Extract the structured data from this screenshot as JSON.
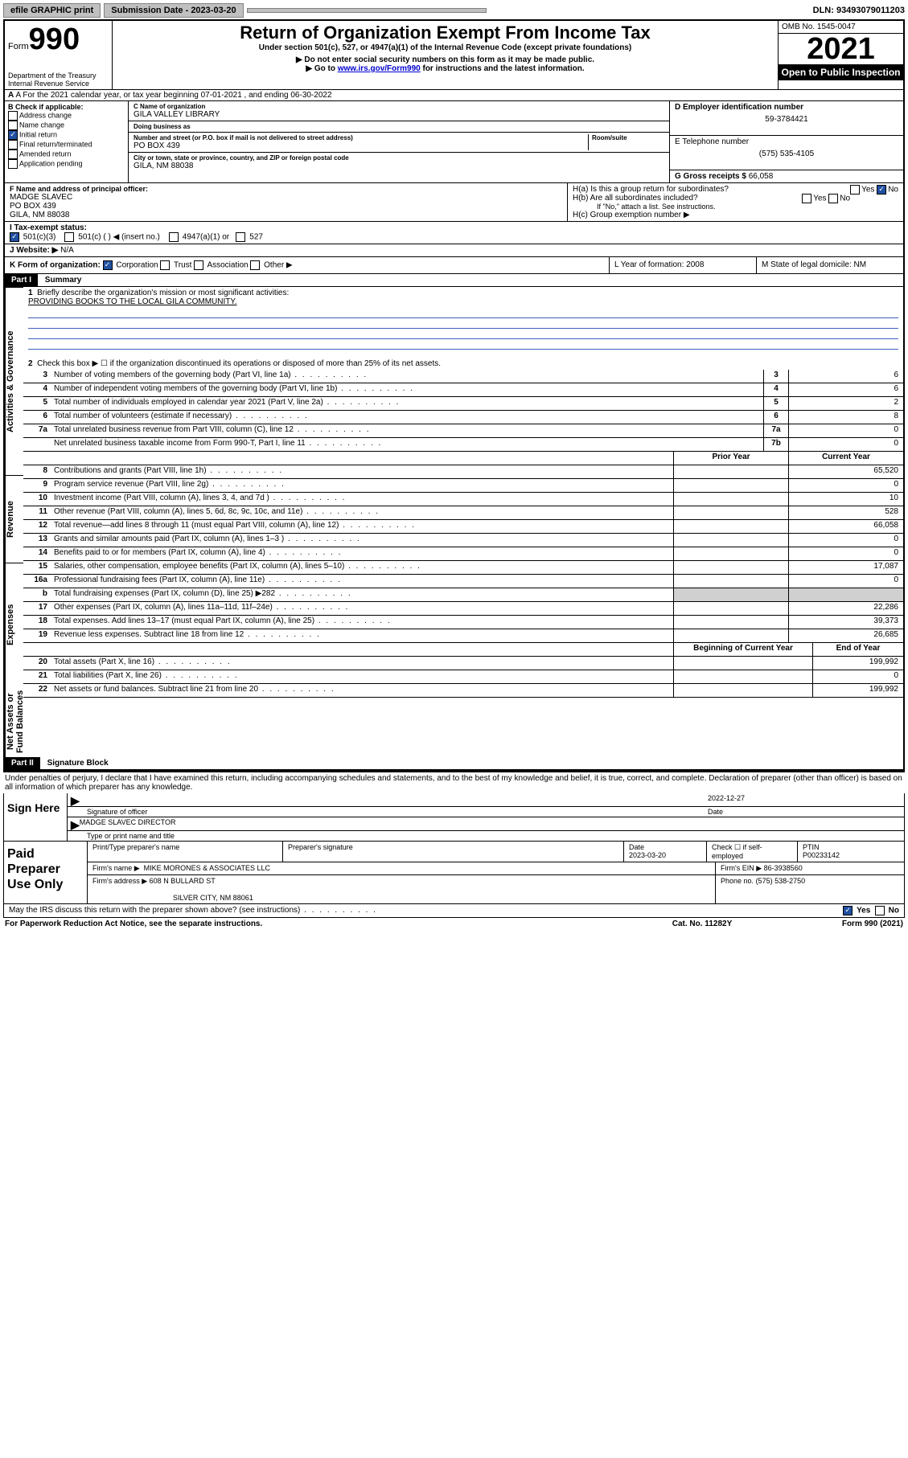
{
  "topbar": {
    "efile": "efile GRAPHIC print",
    "subdate_label": "Submission Date - 2023-03-20",
    "dln": "DLN: 93493079011203"
  },
  "header": {
    "form_word": "Form",
    "form_num": "990",
    "dept": "Department of the Treasury",
    "irs": "Internal Revenue Service",
    "title": "Return of Organization Exempt From Income Tax",
    "sub1": "Under section 501(c), 527, or 4947(a)(1) of the Internal Revenue Code (except private foundations)",
    "sub2": "▶ Do not enter social security numbers on this form as it may be made public.",
    "sub3_pre": "▶ Go to ",
    "sub3_link": "www.irs.gov/Form990",
    "sub3_post": " for instructions and the latest information.",
    "omb": "OMB No. 1545-0047",
    "year": "2021",
    "open": "Open to Public Inspection"
  },
  "rowA": "A For the 2021 calendar year, or tax year beginning 07-01-2021  , and ending 06-30-2022",
  "B": {
    "label": "B Check if applicable:",
    "opts": [
      "Address change",
      "Name change",
      "Initial return",
      "Final return/terminated",
      "Amended return",
      "Application pending"
    ],
    "checked_idx": 2
  },
  "C": {
    "name_label": "C Name of organization",
    "name": "GILA VALLEY LIBRARY",
    "dba_label": "Doing business as",
    "dba": "",
    "addr_label": "Number and street (or P.O. box if mail is not delivered to street address)",
    "room_label": "Room/suite",
    "addr": "PO BOX 439",
    "city_label": "City or town, state or province, country, and ZIP or foreign postal code",
    "city": "GILA, NM  88038"
  },
  "D": {
    "label": "D Employer identification number",
    "value": "59-3784421"
  },
  "E": {
    "label": "E Telephone number",
    "value": "(575) 535-4105"
  },
  "G": {
    "label": "G Gross receipts $",
    "value": "66,058"
  },
  "F": {
    "label": "F  Name and address of principal officer:",
    "line1": "MADGE SLAVEC",
    "line2": "PO BOX 439",
    "line3": "GILA, NM  88038"
  },
  "H": {
    "a": "H(a)  Is this a group return for subordinates?",
    "a_yes": "Yes",
    "a_no": "No",
    "b": "H(b)  Are all subordinates included?",
    "b_yes": "Yes",
    "b_no": "No",
    "b_note": "If \"No,\" attach a list. See instructions.",
    "c": "H(c)  Group exemption number ▶"
  },
  "I": {
    "label": "I     Tax-exempt status:",
    "o1": "501(c)(3)",
    "o2": "501(c) (  ) ◀ (insert no.)",
    "o3": "4947(a)(1) or",
    "o4": "527"
  },
  "J": {
    "label": "J   Website: ▶",
    "value": "N/A"
  },
  "K": {
    "label": "K Form of organization:",
    "o1": "Corporation",
    "o2": "Trust",
    "o3": "Association",
    "o4": "Other ▶"
  },
  "L": {
    "label": "L Year of formation: 2008"
  },
  "M": {
    "label": "M State of legal domicile: NM"
  },
  "partI": {
    "header": "Part I",
    "title": "Summary",
    "q1": "Briefly describe the organization's mission or most significant activities:",
    "mission": "PROVIDING BOOKS TO THE LOCAL GILA COMMUNITY.",
    "q2": "Check this box ▶ ☐  if the organization discontinued its operations or disposed of more than 25% of its net assets.",
    "side1": "Activities & Governance",
    "side2": "Revenue",
    "side3": "Expenses",
    "side4": "Net Assets or Fund Balances",
    "hdr_prior": "Prior Year",
    "hdr_current": "Current Year",
    "hdr_beg": "Beginning of Current Year",
    "hdr_end": "End of Year",
    "rows_gov": [
      {
        "n": "3",
        "d": "Number of voting members of the governing body (Part VI, line 1a)",
        "box": "3",
        "v": "6"
      },
      {
        "n": "4",
        "d": "Number of independent voting members of the governing body (Part VI, line 1b)",
        "box": "4",
        "v": "6"
      },
      {
        "n": "5",
        "d": "Total number of individuals employed in calendar year 2021 (Part V, line 2a)",
        "box": "5",
        "v": "2"
      },
      {
        "n": "6",
        "d": "Total number of volunteers (estimate if necessary)",
        "box": "6",
        "v": "8"
      },
      {
        "n": "7a",
        "d": "Total unrelated business revenue from Part VIII, column (C), line 12",
        "box": "7a",
        "v": "0"
      },
      {
        "n": "",
        "d": "Net unrelated business taxable income from Form 990-T, Part I, line 11",
        "box": "7b",
        "v": "0"
      }
    ],
    "rows_rev": [
      {
        "n": "8",
        "d": "Contributions and grants (Part VIII, line 1h)",
        "p": "",
        "c": "65,520"
      },
      {
        "n": "9",
        "d": "Program service revenue (Part VIII, line 2g)",
        "p": "",
        "c": "0"
      },
      {
        "n": "10",
        "d": "Investment income (Part VIII, column (A), lines 3, 4, and 7d )",
        "p": "",
        "c": "10"
      },
      {
        "n": "11",
        "d": "Other revenue (Part VIII, column (A), lines 5, 6d, 8c, 9c, 10c, and 11e)",
        "p": "",
        "c": "528"
      },
      {
        "n": "12",
        "d": "Total revenue—add lines 8 through 11 (must equal Part VIII, column (A), line 12)",
        "p": "",
        "c": "66,058"
      }
    ],
    "rows_exp": [
      {
        "n": "13",
        "d": "Grants and similar amounts paid (Part IX, column (A), lines 1–3 )",
        "p": "",
        "c": "0"
      },
      {
        "n": "14",
        "d": "Benefits paid to or for members (Part IX, column (A), line 4)",
        "p": "",
        "c": "0"
      },
      {
        "n": "15",
        "d": "Salaries, other compensation, employee benefits (Part IX, column (A), lines 5–10)",
        "p": "",
        "c": "17,087"
      },
      {
        "n": "16a",
        "d": "Professional fundraising fees (Part IX, column (A), line 11e)",
        "p": "",
        "c": "0"
      },
      {
        "n": "b",
        "d": "Total fundraising expenses (Part IX, column (D), line 25) ▶282",
        "p": "shade",
        "c": "shade"
      },
      {
        "n": "17",
        "d": "Other expenses (Part IX, column (A), lines 11a–11d, 11f–24e)",
        "p": "",
        "c": "22,286"
      },
      {
        "n": "18",
        "d": "Total expenses. Add lines 13–17 (must equal Part IX, column (A), line 25)",
        "p": "",
        "c": "39,373"
      },
      {
        "n": "19",
        "d": "Revenue less expenses. Subtract line 18 from line 12",
        "p": "",
        "c": "26,685"
      }
    ],
    "rows_net": [
      {
        "n": "20",
        "d": "Total assets (Part X, line 16)",
        "p": "",
        "c": "199,992"
      },
      {
        "n": "21",
        "d": "Total liabilities (Part X, line 26)",
        "p": "",
        "c": "0"
      },
      {
        "n": "22",
        "d": "Net assets or fund balances. Subtract line 21 from line 20",
        "p": "",
        "c": "199,992"
      }
    ]
  },
  "partII": {
    "header": "Part II",
    "title": "Signature Block",
    "penalties": "Under penalties of perjury, I declare that I have examined this return, including accompanying schedules and statements, and to the best of my knowledge and belief, it is true, correct, and complete. Declaration of preparer (other than officer) is based on all information of which preparer has any knowledge."
  },
  "sign": {
    "here": "Sign Here",
    "sig_label": "Signature of officer",
    "date_label": "Date",
    "date": "2022-12-27",
    "name": "MADGE SLAVEC  DIRECTOR",
    "name_label": "Type or print name and title"
  },
  "paid": {
    "label": "Paid Preparer Use Only",
    "h1": "Print/Type preparer's name",
    "h2": "Preparer's signature",
    "h3_label": "Date",
    "h3": "2023-03-20",
    "h4_label": "Check ☐ if self-employed",
    "h5_label": "PTIN",
    "h5": "P00233142",
    "firm_name_label": "Firm's name    ▶",
    "firm_name": "MIKE MORONES & ASSOCIATES LLC",
    "firm_ein_label": "Firm's EIN ▶",
    "firm_ein": "86-3938560",
    "firm_addr_label": "Firm's address ▶",
    "firm_addr1": "608 N BULLARD ST",
    "firm_addr2": "SILVER CITY, NM  88061",
    "phone_label": "Phone no.",
    "phone": "(575) 538-2750"
  },
  "footer": {
    "may": "May the IRS discuss this return with the preparer shown above? (see instructions)",
    "yes": "Yes",
    "no": "No",
    "pra": "For Paperwork Reduction Act Notice, see the separate instructions.",
    "cat": "Cat. No. 11282Y",
    "form": "Form 990 (2021)"
  }
}
